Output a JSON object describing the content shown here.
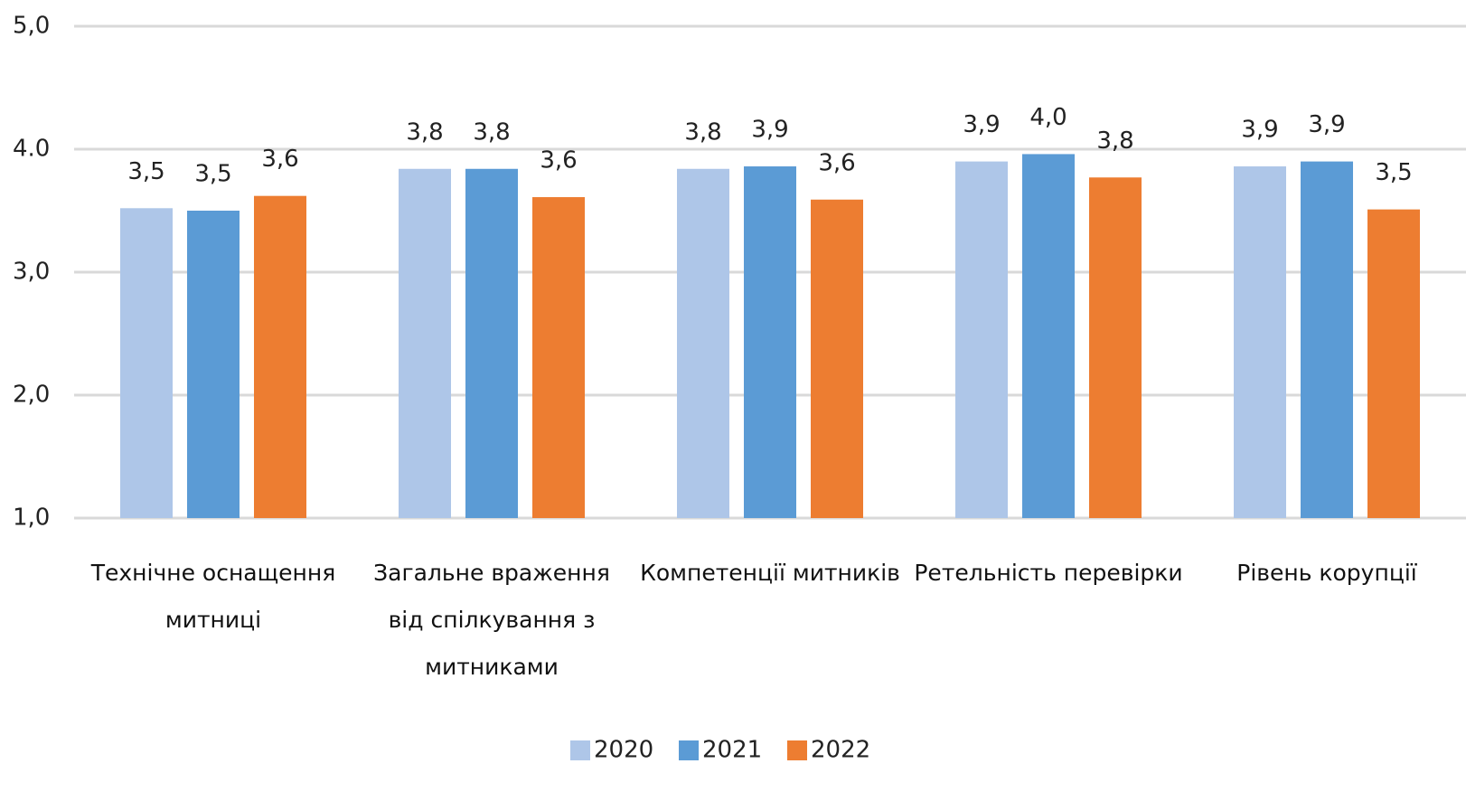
{
  "chart_data": {
    "type": "bar",
    "categories": [
      "Технічне оснащення митниці",
      "Загальне враження від спілкування з митниками",
      "Компетенції митників",
      "Ретельність перевірки",
      "Рівень корупції"
    ],
    "series": [
      {
        "name": "2020",
        "color": "#aec6e8",
        "values": [
          3.52,
          3.84,
          3.84,
          3.9,
          3.86
        ],
        "value_labels": [
          "3,5",
          "3,8",
          "3,8",
          "3,9",
          "3,9"
        ]
      },
      {
        "name": "2021",
        "color": "#5b9bd5",
        "values": [
          3.5,
          3.84,
          3.86,
          3.96,
          3.9
        ],
        "value_labels": [
          "3,5",
          "3,8",
          "3,9",
          "4,0",
          "3,9"
        ]
      },
      {
        "name": "2022",
        "color": "#ed7d31",
        "values": [
          3.62,
          3.61,
          3.59,
          3.77,
          3.51
        ],
        "value_labels": [
          "3,6",
          "3,6",
          "3,6",
          "3,8",
          "3,5"
        ]
      }
    ],
    "ylim": [
      1,
      5
    ],
    "yticks": [
      {
        "value": 1,
        "label": "1,0"
      },
      {
        "value": 2,
        "label": "2,0"
      },
      {
        "value": 3,
        "label": "3,0"
      },
      {
        "value": 4,
        "label": "4.0"
      },
      {
        "value": 5,
        "label": "5,0"
      }
    ],
    "grid": true,
    "legend": "bottom"
  }
}
